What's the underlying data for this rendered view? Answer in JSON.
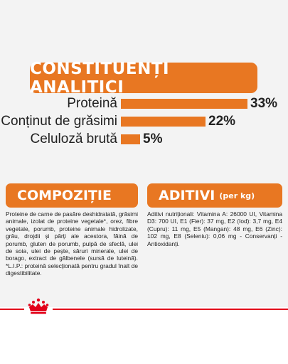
{
  "header": {
    "title": "CONSTITUENȚI ANALITICI"
  },
  "analytics": {
    "protein": {
      "label": "Proteină",
      "value": "33%",
      "percent": 33
    },
    "fat": {
      "label": "Conținut de grăsimi",
      "value": "22%",
      "percent": 22
    },
    "fiber": {
      "label": "Celuloză brută",
      "value": "5%",
      "percent": 5
    }
  },
  "composition": {
    "title": "COMPOZIȚIE",
    "text": "Proteine de carne de pasăre deshidratată, grăsimi animale, izolat de proteine vegetale*, orez, fibre vegetale, porumb, proteine animale hidrolizate, grâu, drojdii și părți ale acestora, făină de porumb, gluten de porumb, pulpă de sfeclă, ulei de soia, ulei de pește, săruri minerale, ulei de borago, extract de gălbenele (sursă de luteină). *L.I.P.: proteină selecționată pentru gradul înalt de digestibilitate."
  },
  "additives": {
    "title": "ADITIVI",
    "subtitle": "(per kg)",
    "text": "Aditivi nutriționali: Vitamina A: 26000 UI, Vitamina D3: 700 UI, E1 (Fier): 37 mg, E2 (Iod): 3,7 mg, E4 (Cupru): 11 mg, E5 (Mangan): 48 mg, E6 (Zinc): 102 mg, E8 (Seleniu): 0,06 mg - Conservanți - Antioxidanți."
  },
  "colors": {
    "accent": "#e87722",
    "panel": "#f3f3f3",
    "brand_red": "#e2001a"
  },
  "logo": {
    "icon": "royal-canin-crown-icon"
  }
}
